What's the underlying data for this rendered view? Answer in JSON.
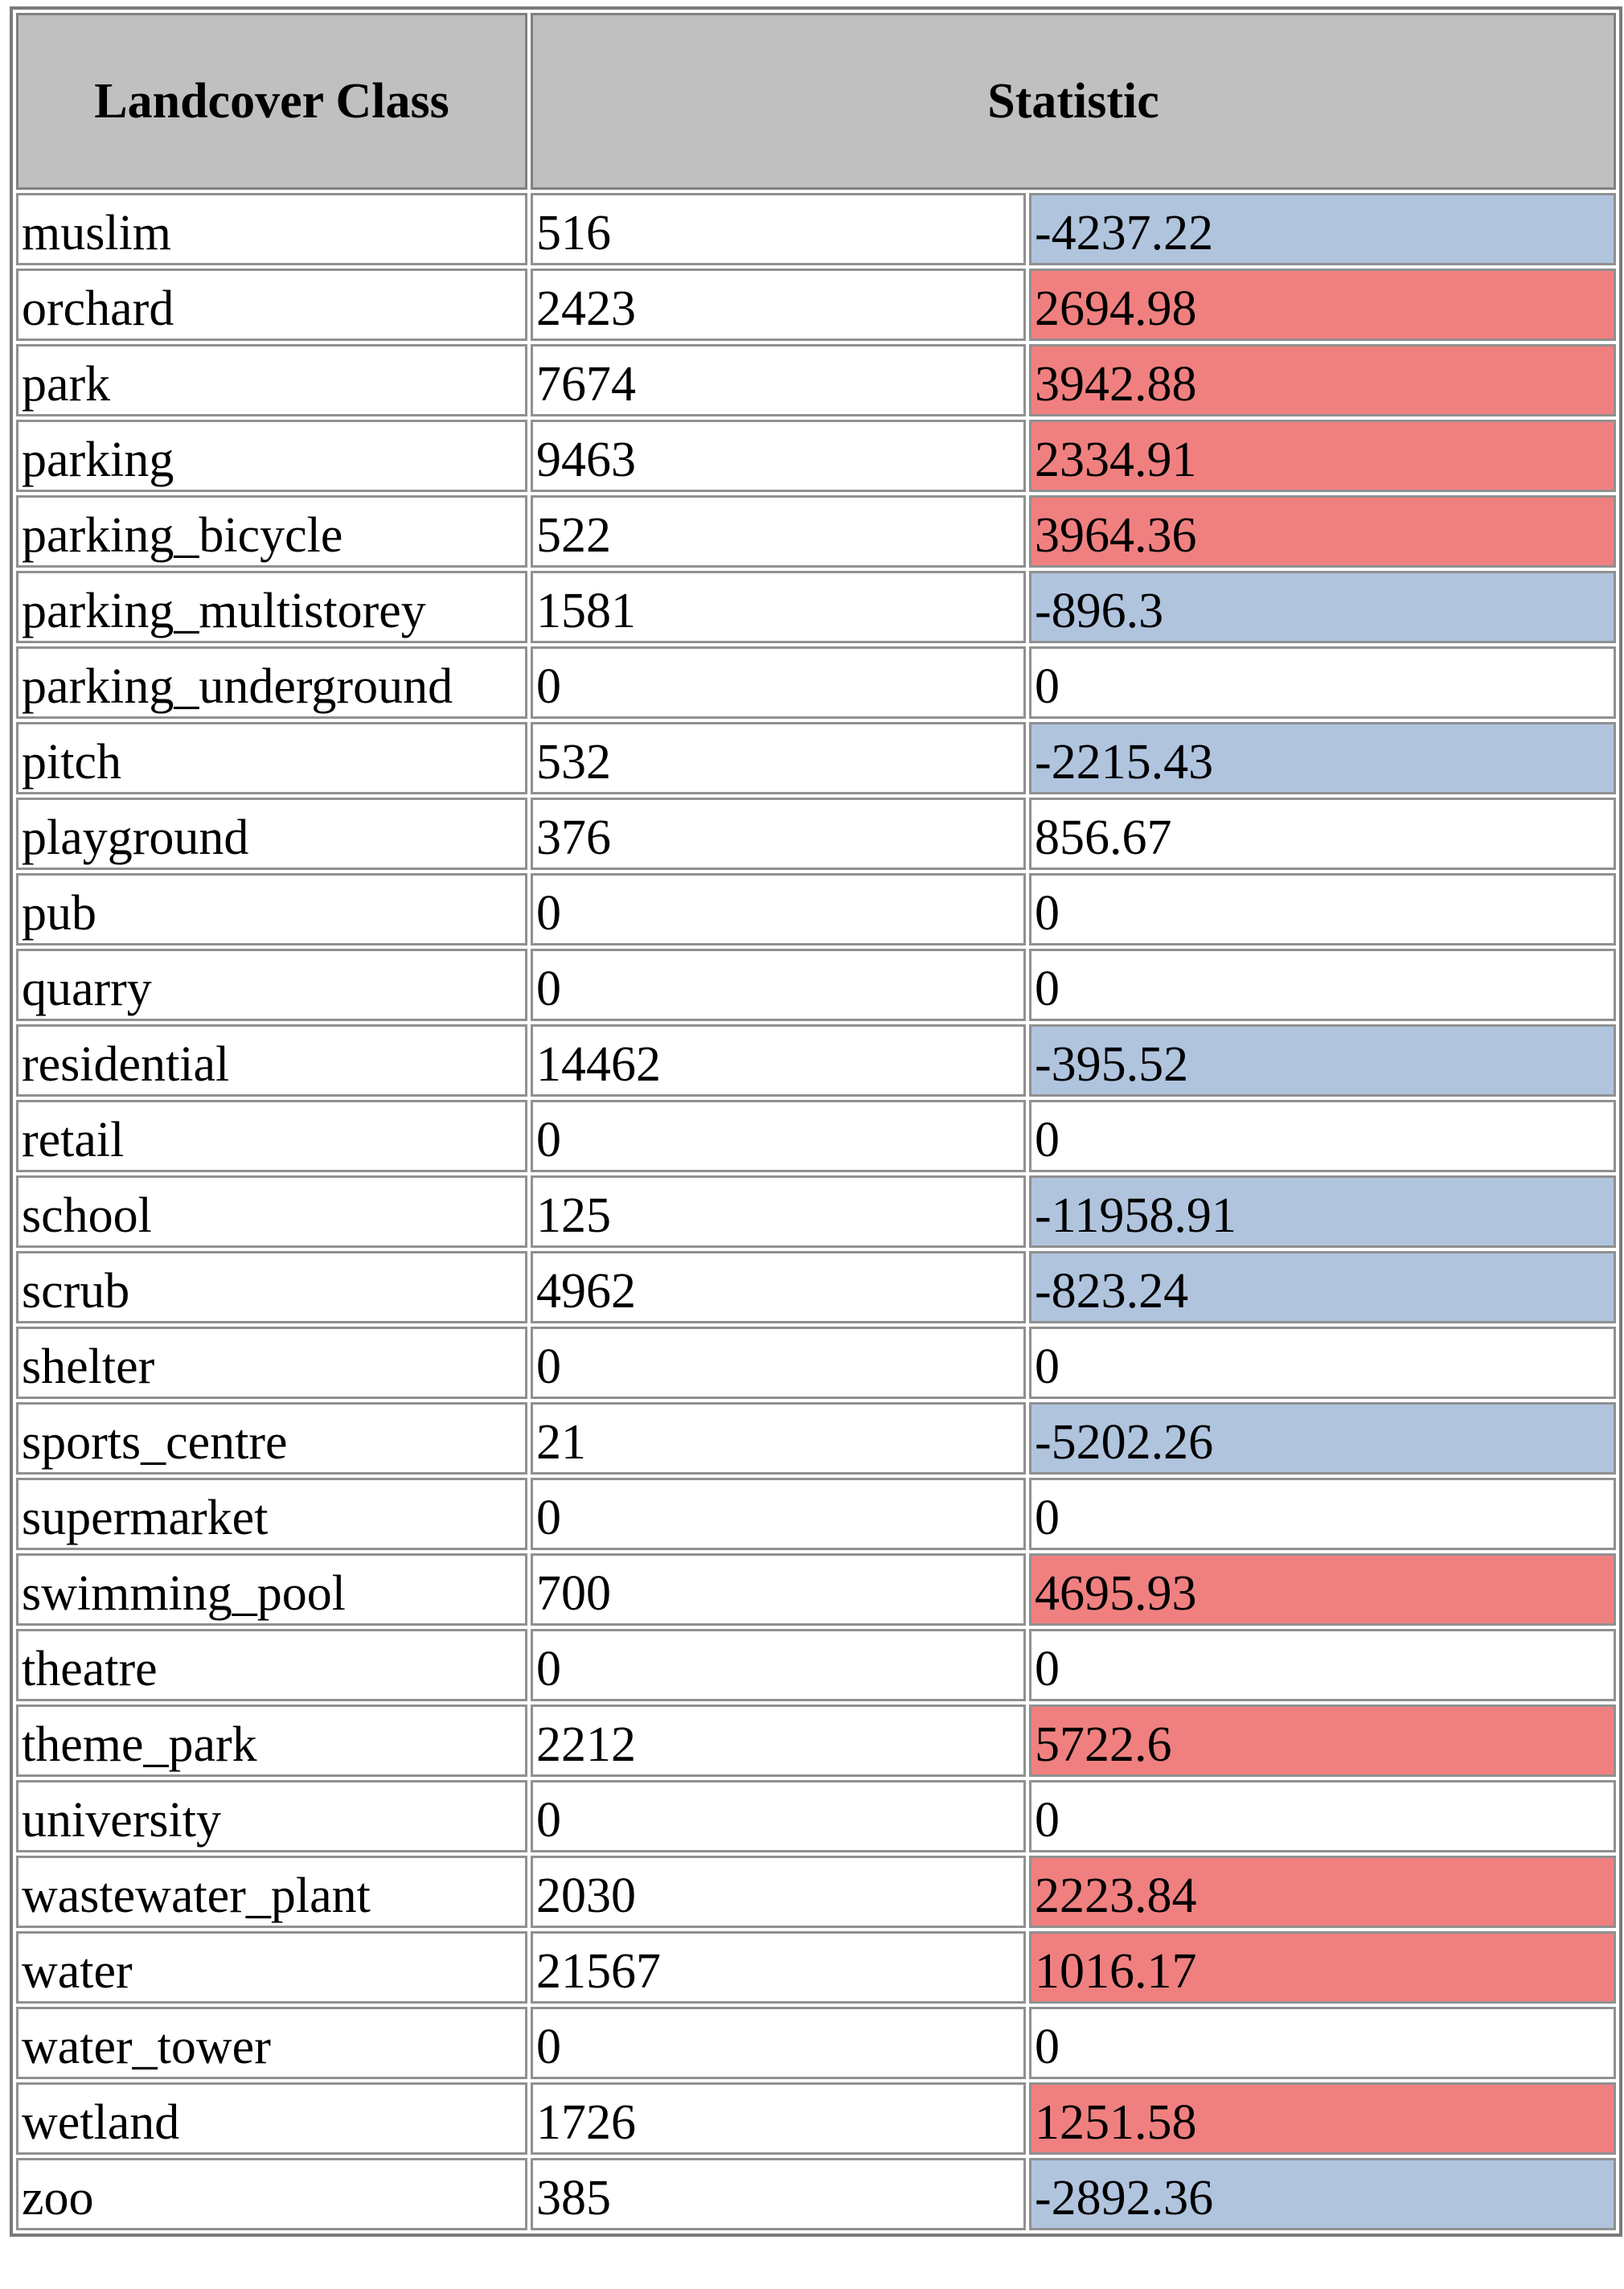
{
  "headers": {
    "landcover_class": "Landcover Class",
    "statistic": "Statistic"
  },
  "colors": {
    "header_bg": "#c0c0c0",
    "negative_bg": "#b0c4de",
    "positive_bg": "#f08080",
    "neutral_bg": "#ffffff"
  },
  "rows": [
    {
      "name": "muslim",
      "count": "516",
      "statistic": "-4237.22",
      "tone": "neg"
    },
    {
      "name": "orchard",
      "count": "2423",
      "statistic": "2694.98",
      "tone": "pos"
    },
    {
      "name": "park",
      "count": "7674",
      "statistic": "3942.88",
      "tone": "pos"
    },
    {
      "name": "parking",
      "count": "9463",
      "statistic": "2334.91",
      "tone": "pos"
    },
    {
      "name": "parking_bicycle",
      "count": "522",
      "statistic": "3964.36",
      "tone": "pos"
    },
    {
      "name": "parking_multistorey",
      "count": "1581",
      "statistic": "-896.3",
      "tone": "neg"
    },
    {
      "name": "parking_underground",
      "count": "0",
      "statistic": "0",
      "tone": "neutral"
    },
    {
      "name": "pitch",
      "count": "532",
      "statistic": "-2215.43",
      "tone": "neg"
    },
    {
      "name": "playground",
      "count": "376",
      "statistic": "856.67",
      "tone": "neutral"
    },
    {
      "name": "pub",
      "count": "0",
      "statistic": "0",
      "tone": "neutral"
    },
    {
      "name": "quarry",
      "count": "0",
      "statistic": "0",
      "tone": "neutral"
    },
    {
      "name": "residential",
      "count": "14462",
      "statistic": "-395.52",
      "tone": "neg"
    },
    {
      "name": "retail",
      "count": "0",
      "statistic": "0",
      "tone": "neutral"
    },
    {
      "name": "school",
      "count": "125",
      "statistic": "-11958.91",
      "tone": "neg"
    },
    {
      "name": "scrub",
      "count": "4962",
      "statistic": "-823.24",
      "tone": "neg"
    },
    {
      "name": "shelter",
      "count": "0",
      "statistic": "0",
      "tone": "neutral"
    },
    {
      "name": "sports_centre",
      "count": "21",
      "statistic": "-5202.26",
      "tone": "neg"
    },
    {
      "name": "supermarket",
      "count": "0",
      "statistic": "0",
      "tone": "neutral"
    },
    {
      "name": "swimming_pool",
      "count": "700",
      "statistic": "4695.93",
      "tone": "pos"
    },
    {
      "name": "theatre",
      "count": "0",
      "statistic": "0",
      "tone": "neutral"
    },
    {
      "name": "theme_park",
      "count": "2212",
      "statistic": "5722.6",
      "tone": "pos"
    },
    {
      "name": "university",
      "count": "0",
      "statistic": "0",
      "tone": "neutral"
    },
    {
      "name": "wastewater_plant",
      "count": "2030",
      "statistic": "2223.84",
      "tone": "pos"
    },
    {
      "name": "water",
      "count": "21567",
      "statistic": "1016.17",
      "tone": "pos"
    },
    {
      "name": "water_tower",
      "count": "0",
      "statistic": "0",
      "tone": "neutral"
    },
    {
      "name": "wetland",
      "count": "1726",
      "statistic": "1251.58",
      "tone": "pos"
    },
    {
      "name": "zoo",
      "count": "385",
      "statistic": "-2892.36",
      "tone": "neg"
    }
  ]
}
